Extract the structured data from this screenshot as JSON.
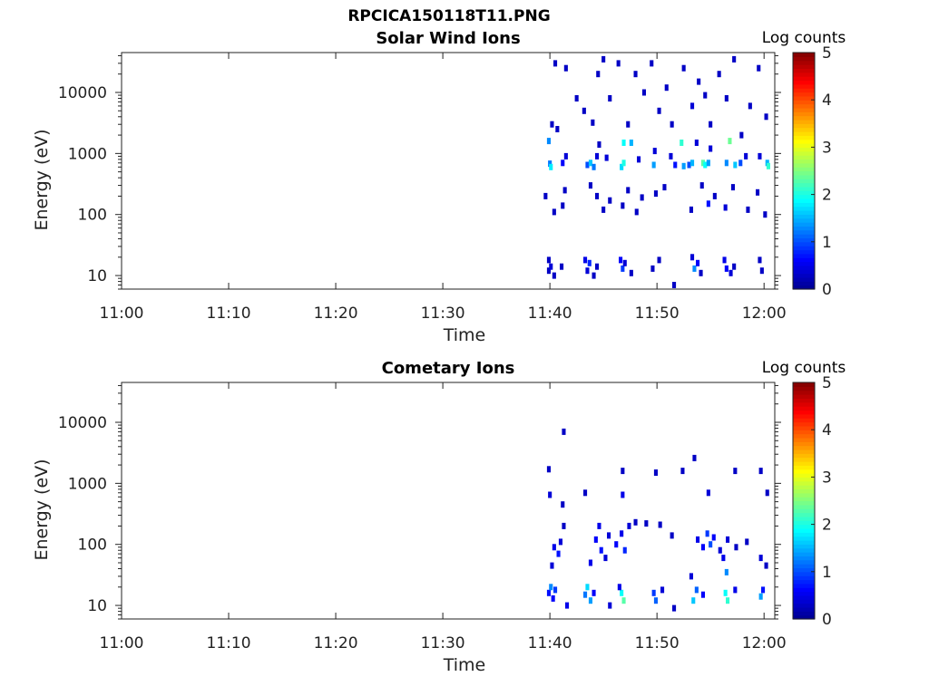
{
  "title": "RPCICA150118T11.PNG",
  "colors": {
    "colormap": [
      "#00008f",
      "#0000ff",
      "#0080ff",
      "#00ffff",
      "#80ff80",
      "#ffff00",
      "#ff8000",
      "#ff0000",
      "#800000"
    ]
  },
  "chart_data": [
    {
      "type": "heatmap",
      "title": "Solar Wind Ions",
      "xlabel": "Time",
      "ylabel": "Energy (eV)",
      "x_ticks": [
        "11:00",
        "11:10",
        "11:20",
        "11:30",
        "11:40",
        "11:50",
        "12:00"
      ],
      "xlim": [
        "11:00",
        "12:01"
      ],
      "y_scale": "log",
      "y_ticks": [
        10,
        100,
        1000,
        10000
      ],
      "y_tick_labels": [
        "10",
        "100",
        "1000",
        "10000"
      ],
      "ylim": [
        6,
        45000
      ],
      "colorbar": {
        "title": "Log counts",
        "ticks": [
          "0",
          "1",
          "2",
          "3",
          "4",
          "5"
        ],
        "range": [
          0,
          5
        ]
      },
      "points": [
        {
          "t": 39.9,
          "e": 18,
          "v": 0.3
        },
        {
          "t": 39.9,
          "e": 12,
          "v": 0.3
        },
        {
          "t": 40.1,
          "e": 14,
          "v": 0.4
        },
        {
          "t": 40.4,
          "e": 10,
          "v": 0.3
        },
        {
          "t": 41.1,
          "e": 14,
          "v": 0.3
        },
        {
          "t": 43.3,
          "e": 18,
          "v": 0.5
        },
        {
          "t": 43.5,
          "e": 12,
          "v": 0.4
        },
        {
          "t": 43.7,
          "e": 16,
          "v": 0.8
        },
        {
          "t": 44.1,
          "e": 10,
          "v": 0.3
        },
        {
          "t": 44.4,
          "e": 14,
          "v": 0.3
        },
        {
          "t": 46.6,
          "e": 18,
          "v": 0.6
        },
        {
          "t": 46.8,
          "e": 13,
          "v": 0.9
        },
        {
          "t": 47.0,
          "e": 16,
          "v": 0.4
        },
        {
          "t": 47.6,
          "e": 11,
          "v": 0.3
        },
        {
          "t": 49.6,
          "e": 13,
          "v": 0.3
        },
        {
          "t": 50.2,
          "e": 18,
          "v": 0.3
        },
        {
          "t": 51.6,
          "e": 7,
          "v": 0.3
        },
        {
          "t": 53.3,
          "e": 20,
          "v": 0.4
        },
        {
          "t": 53.5,
          "e": 13,
          "v": 1.3
        },
        {
          "t": 53.8,
          "e": 16,
          "v": 0.6
        },
        {
          "t": 54.1,
          "e": 11,
          "v": 0.3
        },
        {
          "t": 56.3,
          "e": 18,
          "v": 0.5
        },
        {
          "t": 56.5,
          "e": 13,
          "v": 0.6
        },
        {
          "t": 56.9,
          "e": 11,
          "v": 0.4
        },
        {
          "t": 57.2,
          "e": 14,
          "v": 0.3
        },
        {
          "t": 59.6,
          "e": 18,
          "v": 0.3
        },
        {
          "t": 59.8,
          "e": 12,
          "v": 0.3
        },
        {
          "t": 40.0,
          "e": 680,
          "v": 1.2
        },
        {
          "t": 40.1,
          "e": 600,
          "v": 1.8
        },
        {
          "t": 39.9,
          "e": 1600,
          "v": 1.3
        },
        {
          "t": 41.2,
          "e": 700,
          "v": 0.6
        },
        {
          "t": 41.5,
          "e": 900,
          "v": 0.4
        },
        {
          "t": 40.7,
          "e": 2500,
          "v": 0.3
        },
        {
          "t": 43.5,
          "e": 650,
          "v": 1.0
        },
        {
          "t": 43.8,
          "e": 700,
          "v": 1.6
        },
        {
          "t": 44.1,
          "e": 600,
          "v": 1.2
        },
        {
          "t": 44.4,
          "e": 900,
          "v": 0.4
        },
        {
          "t": 44.6,
          "e": 1400,
          "v": 0.3
        },
        {
          "t": 45.3,
          "e": 850,
          "v": 0.4
        },
        {
          "t": 46.7,
          "e": 600,
          "v": 1.7
        },
        {
          "t": 46.9,
          "e": 700,
          "v": 2.0
        },
        {
          "t": 46.9,
          "e": 1500,
          "v": 1.9
        },
        {
          "t": 47.6,
          "e": 1500,
          "v": 1.5
        },
        {
          "t": 48.3,
          "e": 800,
          "v": 0.4
        },
        {
          "t": 49.7,
          "e": 650,
          "v": 1.4
        },
        {
          "t": 49.8,
          "e": 1100,
          "v": 0.4
        },
        {
          "t": 51.3,
          "e": 900,
          "v": 0.4
        },
        {
          "t": 51.7,
          "e": 650,
          "v": 0.7
        },
        {
          "t": 52.3,
          "e": 1500,
          "v": 2.1
        },
        {
          "t": 52.5,
          "e": 620,
          "v": 1.4
        },
        {
          "t": 53.0,
          "e": 650,
          "v": 1.0
        },
        {
          "t": 53.3,
          "e": 700,
          "v": 1.5
        },
        {
          "t": 53.7,
          "e": 1500,
          "v": 0.4
        },
        {
          "t": 54.3,
          "e": 700,
          "v": 2.3
        },
        {
          "t": 54.5,
          "e": 650,
          "v": 1.9
        },
        {
          "t": 54.8,
          "e": 700,
          "v": 1.4
        },
        {
          "t": 55.0,
          "e": 1200,
          "v": 0.4
        },
        {
          "t": 56.5,
          "e": 700,
          "v": 1.3
        },
        {
          "t": 56.8,
          "e": 1600,
          "v": 2.4
        },
        {
          "t": 57.3,
          "e": 650,
          "v": 1.6
        },
        {
          "t": 57.8,
          "e": 700,
          "v": 1.0
        },
        {
          "t": 58.3,
          "e": 900,
          "v": 0.4
        },
        {
          "t": 59.6,
          "e": 900,
          "v": 0.4
        },
        {
          "t": 60.3,
          "e": 700,
          "v": 1.5
        },
        {
          "t": 60.4,
          "e": 620,
          "v": 2.1
        },
        {
          "t": 40.2,
          "e": 3000,
          "v": 0.3
        },
        {
          "t": 40.5,
          "e": 30000,
          "v": 0.3
        },
        {
          "t": 41.5,
          "e": 25000,
          "v": 0.3
        },
        {
          "t": 42.5,
          "e": 8000,
          "v": 0.3
        },
        {
          "t": 43.2,
          "e": 5000,
          "v": 0.3
        },
        {
          "t": 44.0,
          "e": 3200,
          "v": 0.3
        },
        {
          "t": 44.5,
          "e": 20000,
          "v": 0.3
        },
        {
          "t": 45.0,
          "e": 35000,
          "v": 0.3
        },
        {
          "t": 45.6,
          "e": 8000,
          "v": 0.3
        },
        {
          "t": 46.4,
          "e": 30000,
          "v": 0.3
        },
        {
          "t": 47.3,
          "e": 3000,
          "v": 0.3
        },
        {
          "t": 48.0,
          "e": 20000,
          "v": 0.3
        },
        {
          "t": 48.8,
          "e": 10000,
          "v": 0.3
        },
        {
          "t": 49.5,
          "e": 30000,
          "v": 0.3
        },
        {
          "t": 50.2,
          "e": 5000,
          "v": 0.3
        },
        {
          "t": 50.9,
          "e": 12000,
          "v": 0.3
        },
        {
          "t": 51.4,
          "e": 3000,
          "v": 0.3
        },
        {
          "t": 52.5,
          "e": 25000,
          "v": 0.3
        },
        {
          "t": 53.3,
          "e": 6000,
          "v": 0.4
        },
        {
          "t": 53.9,
          "e": 15000,
          "v": 0.3
        },
        {
          "t": 54.5,
          "e": 9000,
          "v": 0.3
        },
        {
          "t": 55.0,
          "e": 3000,
          "v": 0.3
        },
        {
          "t": 55.8,
          "e": 20000,
          "v": 0.3
        },
        {
          "t": 56.5,
          "e": 8000,
          "v": 0.3
        },
        {
          "t": 57.2,
          "e": 35000,
          "v": 0.3
        },
        {
          "t": 57.9,
          "e": 2000,
          "v": 0.3
        },
        {
          "t": 58.7,
          "e": 6000,
          "v": 0.3
        },
        {
          "t": 59.5,
          "e": 25000,
          "v": 0.3
        },
        {
          "t": 60.2,
          "e": 4000,
          "v": 0.3
        },
        {
          "t": 39.6,
          "e": 200,
          "v": 0.3
        },
        {
          "t": 40.4,
          "e": 110,
          "v": 0.3
        },
        {
          "t": 41.2,
          "e": 140,
          "v": 0.3
        },
        {
          "t": 41.4,
          "e": 250,
          "v": 0.3
        },
        {
          "t": 43.8,
          "e": 300,
          "v": 0.3
        },
        {
          "t": 44.4,
          "e": 200,
          "v": 0.3
        },
        {
          "t": 45.0,
          "e": 120,
          "v": 0.3
        },
        {
          "t": 45.6,
          "e": 170,
          "v": 0.3
        },
        {
          "t": 46.8,
          "e": 140,
          "v": 0.3
        },
        {
          "t": 47.3,
          "e": 250,
          "v": 0.3
        },
        {
          "t": 48.1,
          "e": 110,
          "v": 0.3
        },
        {
          "t": 48.6,
          "e": 190,
          "v": 0.3
        },
        {
          "t": 49.9,
          "e": 220,
          "v": 0.3
        },
        {
          "t": 50.7,
          "e": 280,
          "v": 0.3
        },
        {
          "t": 53.2,
          "e": 120,
          "v": 0.3
        },
        {
          "t": 54.2,
          "e": 300,
          "v": 0.3
        },
        {
          "t": 54.8,
          "e": 150,
          "v": 0.7
        },
        {
          "t": 55.4,
          "e": 200,
          "v": 0.3
        },
        {
          "t": 56.4,
          "e": 130,
          "v": 0.4
        },
        {
          "t": 57.1,
          "e": 280,
          "v": 0.3
        },
        {
          "t": 58.5,
          "e": 120,
          "v": 0.3
        },
        {
          "t": 59.4,
          "e": 230,
          "v": 0.3
        },
        {
          "t": 60.1,
          "e": 100,
          "v": 0.3
        }
      ]
    },
    {
      "type": "heatmap",
      "title": "Cometary Ions",
      "xlabel": "Time",
      "ylabel": "Energy (eV)",
      "x_ticks": [
        "11:00",
        "11:10",
        "11:20",
        "11:30",
        "11:40",
        "11:50",
        "12:00"
      ],
      "xlim": [
        "11:00",
        "12:01"
      ],
      "y_scale": "log",
      "y_ticks": [
        10,
        100,
        1000,
        10000
      ],
      "y_tick_labels": [
        "10",
        "100",
        "1000",
        "10000"
      ],
      "ylim": [
        6,
        45000
      ],
      "colorbar": {
        "title": "Log counts",
        "ticks": [
          "0",
          "1",
          "2",
          "3",
          "4",
          "5"
        ],
        "range": [
          0,
          5
        ]
      },
      "points": [
        {
          "t": 39.9,
          "e": 16,
          "v": 0.7
        },
        {
          "t": 40.1,
          "e": 20,
          "v": 1.3
        },
        {
          "t": 40.3,
          "e": 13,
          "v": 0.6
        },
        {
          "t": 40.5,
          "e": 18,
          "v": 0.9
        },
        {
          "t": 41.6,
          "e": 10,
          "v": 0.5
        },
        {
          "t": 43.3,
          "e": 15,
          "v": 1.2
        },
        {
          "t": 43.5,
          "e": 20,
          "v": 1.7
        },
        {
          "t": 43.8,
          "e": 12,
          "v": 1.4
        },
        {
          "t": 44.1,
          "e": 16,
          "v": 0.6
        },
        {
          "t": 45.6,
          "e": 10,
          "v": 0.4
        },
        {
          "t": 46.7,
          "e": 16,
          "v": 1.9
        },
        {
          "t": 46.9,
          "e": 12,
          "v": 2.3
        },
        {
          "t": 46.5,
          "e": 20,
          "v": 0.5
        },
        {
          "t": 49.7,
          "e": 16,
          "v": 0.9
        },
        {
          "t": 49.9,
          "e": 12,
          "v": 1.1
        },
        {
          "t": 50.5,
          "e": 18,
          "v": 0.4
        },
        {
          "t": 51.6,
          "e": 9,
          "v": 0.3
        },
        {
          "t": 53.4,
          "e": 12,
          "v": 1.6
        },
        {
          "t": 53.7,
          "e": 18,
          "v": 1.1
        },
        {
          "t": 53.2,
          "e": 30,
          "v": 0.4
        },
        {
          "t": 54.3,
          "e": 15,
          "v": 0.6
        },
        {
          "t": 56.4,
          "e": 16,
          "v": 1.9
        },
        {
          "t": 56.6,
          "e": 12,
          "v": 2.1
        },
        {
          "t": 56.5,
          "e": 35,
          "v": 1.3
        },
        {
          "t": 57.3,
          "e": 18,
          "v": 0.5
        },
        {
          "t": 59.7,
          "e": 14,
          "v": 1.4
        },
        {
          "t": 59.9,
          "e": 18,
          "v": 0.7
        },
        {
          "t": 40.4,
          "e": 90,
          "v": 0.5
        },
        {
          "t": 40.8,
          "e": 70,
          "v": 0.7
        },
        {
          "t": 41.0,
          "e": 110,
          "v": 0.4
        },
        {
          "t": 40.2,
          "e": 45,
          "v": 0.4
        },
        {
          "t": 41.3,
          "e": 200,
          "v": 0.3
        },
        {
          "t": 43.8,
          "e": 50,
          "v": 0.5
        },
        {
          "t": 44.3,
          "e": 120,
          "v": 0.6
        },
        {
          "t": 44.6,
          "e": 200,
          "v": 0.5
        },
        {
          "t": 44.8,
          "e": 80,
          "v": 0.7
        },
        {
          "t": 45.5,
          "e": 140,
          "v": 0.4
        },
        {
          "t": 45.2,
          "e": 60,
          "v": 0.4
        },
        {
          "t": 46.2,
          "e": 100,
          "v": 0.6
        },
        {
          "t": 46.7,
          "e": 150,
          "v": 0.5
        },
        {
          "t": 47.0,
          "e": 80,
          "v": 0.8
        },
        {
          "t": 47.4,
          "e": 200,
          "v": 0.4
        },
        {
          "t": 48.0,
          "e": 230,
          "v": 0.3
        },
        {
          "t": 49.0,
          "e": 220,
          "v": 0.3
        },
        {
          "t": 50.3,
          "e": 210,
          "v": 0.3
        },
        {
          "t": 51.4,
          "e": 140,
          "v": 0.3
        },
        {
          "t": 53.8,
          "e": 120,
          "v": 0.5
        },
        {
          "t": 54.3,
          "e": 90,
          "v": 0.6
        },
        {
          "t": 54.7,
          "e": 150,
          "v": 0.9
        },
        {
          "t": 55.0,
          "e": 100,
          "v": 1.0
        },
        {
          "t": 55.3,
          "e": 130,
          "v": 0.6
        },
        {
          "t": 55.9,
          "e": 80,
          "v": 0.4
        },
        {
          "t": 56.2,
          "e": 60,
          "v": 0.5
        },
        {
          "t": 56.6,
          "e": 120,
          "v": 0.4
        },
        {
          "t": 57.4,
          "e": 90,
          "v": 0.3
        },
        {
          "t": 58.4,
          "e": 110,
          "v": 0.3
        },
        {
          "t": 59.7,
          "e": 60,
          "v": 0.4
        },
        {
          "t": 60.2,
          "e": 45,
          "v": 0.3
        },
        {
          "t": 41.3,
          "e": 7000,
          "v": 0.3
        },
        {
          "t": 39.9,
          "e": 1700,
          "v": 0.3
        },
        {
          "t": 40.0,
          "e": 650,
          "v": 0.4
        },
        {
          "t": 41.2,
          "e": 450,
          "v": 0.3
        },
        {
          "t": 43.3,
          "e": 700,
          "v": 0.3
        },
        {
          "t": 46.8,
          "e": 650,
          "v": 0.5
        },
        {
          "t": 46.8,
          "e": 1600,
          "v": 0.3
        },
        {
          "t": 49.9,
          "e": 1500,
          "v": 0.3
        },
        {
          "t": 52.4,
          "e": 1600,
          "v": 0.3
        },
        {
          "t": 53.5,
          "e": 2600,
          "v": 0.3
        },
        {
          "t": 54.8,
          "e": 700,
          "v": 0.4
        },
        {
          "t": 57.3,
          "e": 1600,
          "v": 0.3
        },
        {
          "t": 59.7,
          "e": 1600,
          "v": 0.3
        },
        {
          "t": 60.3,
          "e": 700,
          "v": 0.3
        }
      ]
    }
  ]
}
